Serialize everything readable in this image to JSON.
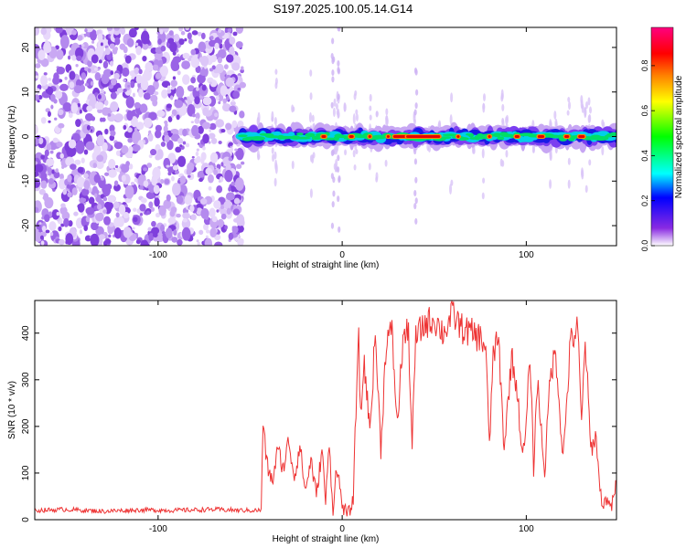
{
  "title": "S197.2025.100.05.14.G14",
  "chart_data": [
    {
      "type": "heatmap",
      "name": "spectrogram",
      "xlabel": "Height of straight line (km)",
      "ylabel": "Frequency (Hz)",
      "xlim": [
        -167,
        149
      ],
      "ylim": [
        -24.5,
        24.5
      ],
      "xticks": [
        -100,
        0,
        100
      ],
      "yticks": [
        -20,
        -10,
        0,
        10,
        20
      ],
      "noise_region_x": [
        -167,
        -54
      ],
      "signal_start_x": -54,
      "signal_frequency_hz": 0,
      "colorbar": {
        "label": "Normalized spectral amplitude",
        "range": [
          0,
          0.97
        ],
        "ticks": [
          0.0,
          0.2,
          0.4,
          0.6,
          0.8
        ],
        "tick_labels": [
          "0.0",
          "0.2",
          "0.4",
          "0.6",
          "0.8"
        ],
        "colors": [
          "#ffffff",
          "#8a2be2",
          "#0000ff",
          "#00ffff",
          "#00ff00",
          "#ffff00",
          "#ff8000",
          "#ff0000",
          "#ff0080"
        ]
      }
    },
    {
      "type": "line",
      "name": "snr",
      "xlabel": "Height of straight line (km)",
      "ylabel": "SNR (10 * v/v)",
      "xlim": [
        -167,
        149
      ],
      "ylim": [
        0,
        470
      ],
      "xticks": [
        -100,
        0,
        100
      ],
      "yticks": [
        0,
        100,
        200,
        300,
        400
      ],
      "color": "#ee3333",
      "series": [
        {
          "name": "SNR",
          "x": [
            -167,
            -150,
            -130,
            -110,
            -90,
            -70,
            -55,
            -44,
            -43,
            -41,
            -38,
            -35,
            -32,
            -29,
            -26,
            -23,
            -20,
            -17,
            -14,
            -11,
            -9,
            -7,
            -5,
            -3,
            0,
            3,
            6,
            8,
            9,
            10,
            12,
            15,
            18,
            21,
            24,
            27,
            30,
            33,
            36,
            38,
            40,
            45,
            50,
            55,
            60,
            65,
            70,
            75,
            78,
            80,
            82,
            85,
            88,
            92,
            95,
            98,
            100,
            102,
            104,
            106,
            110,
            113,
            116,
            120,
            124,
            128,
            130,
            132,
            135,
            138,
            140,
            142,
            144,
            146,
            149
          ],
          "y": [
            20,
            22,
            18,
            21,
            20,
            22,
            20,
            20,
            210,
            120,
            80,
            150,
            110,
            170,
            90,
            160,
            60,
            130,
            50,
            150,
            40,
            160,
            20,
            120,
            30,
            10,
            40,
            310,
            380,
            220,
            340,
            190,
            400,
            150,
            390,
            400,
            200,
            390,
            400,
            160,
            390,
            420,
            430,
            400,
            440,
            410,
            400,
            390,
            370,
            150,
            360,
            380,
            150,
            350,
            280,
            130,
            200,
            360,
            110,
            300,
            100,
            310,
            360,
            130,
            380,
            410,
            200,
            390,
            150,
            180,
            60,
            30,
            50,
            20,
            80
          ]
        }
      ]
    }
  ]
}
